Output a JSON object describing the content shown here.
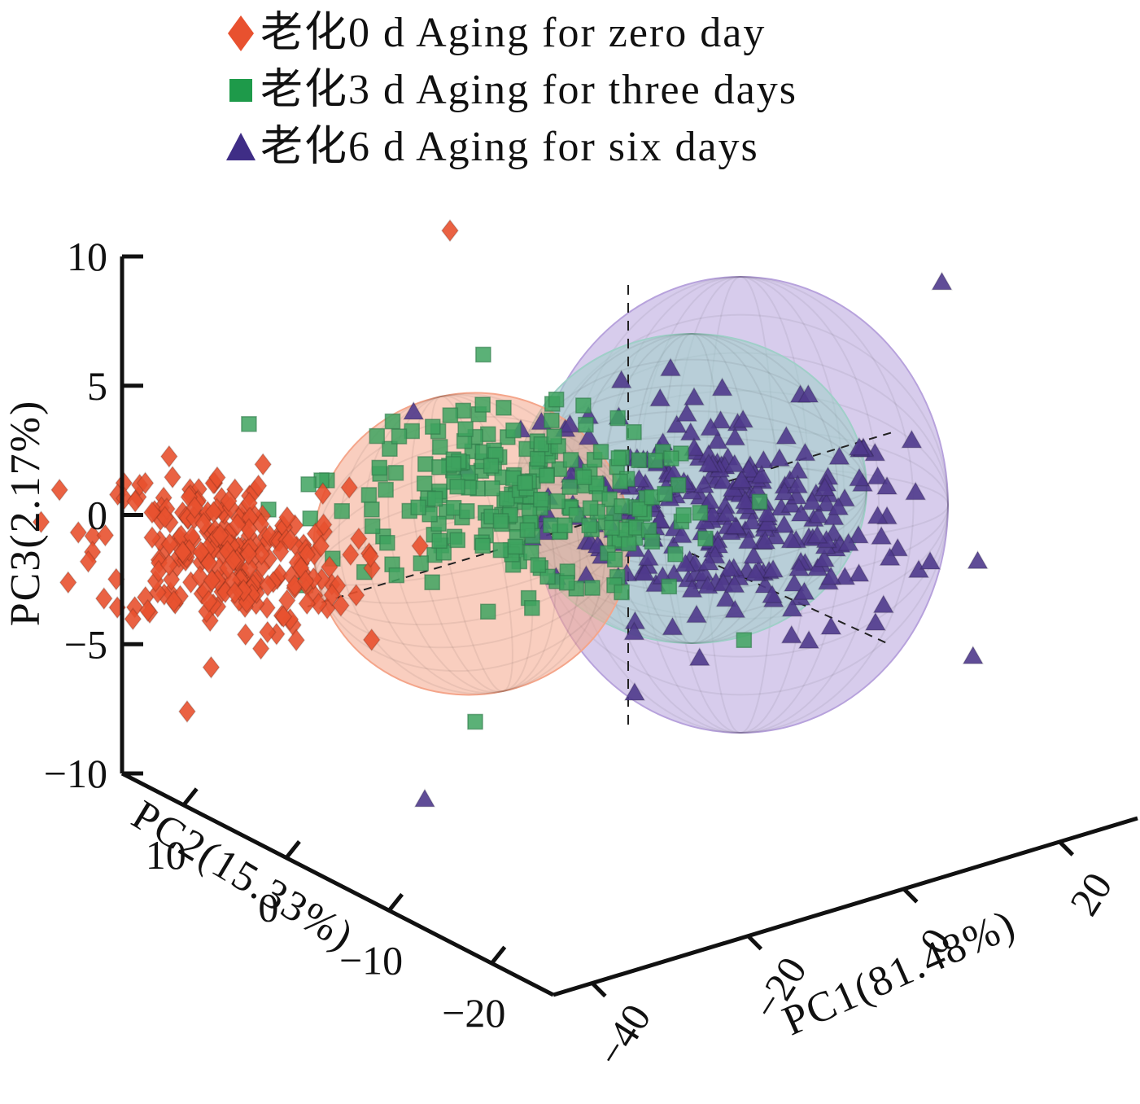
{
  "chart_data": {
    "type": "scatter",
    "subtype": "3d-pca-scatter-with-confidence-ellipsoids",
    "title": "",
    "legend_position": "top",
    "axes": {
      "x": {
        "label": "PC1(81.48%)",
        "ticks": [
          -40,
          -20,
          0,
          20
        ],
        "range": [
          -45,
          30
        ]
      },
      "y": {
        "label": "PC2(15.33%)",
        "ticks": [
          10,
          0,
          -10,
          -20
        ],
        "range": [
          16,
          -26
        ]
      },
      "z": {
        "label": "PC3(2.17%)",
        "ticks": [
          10,
          5,
          0,
          -5,
          -10
        ],
        "range": [
          -10,
          10
        ]
      }
    },
    "series": [
      {
        "name": "老化0 d Aging for zero day",
        "marker": "diamond",
        "color": "#e8512f",
        "ellipsoid_color": "#f4a58a",
        "center": {
          "pc1": -32,
          "pc3": -1.5
        },
        "spread": {
          "pc1": 9,
          "pc3": 2.6
        },
        "n_points": 260
      },
      {
        "name": "老化3 d Aging for three days",
        "marker": "square",
        "color": "#3ea35f",
        "ellipsoid_color": "#9fcfc8",
        "center": {
          "pc1": -8,
          "pc3": 0.5
        },
        "spread": {
          "pc1": 14,
          "pc3": 2.8
        },
        "n_points": 240
      },
      {
        "name": "老化6 d Aging for six days",
        "marker": "triangle",
        "color": "#4f3a8c",
        "ellipsoid_color": "#b7a2dc",
        "center": {
          "pc1": 8,
          "pc3": 0
        },
        "spread": {
          "pc1": 13,
          "pc3": 3.6
        },
        "n_points": 280
      }
    ],
    "outliers": [
      {
        "series": 0,
        "pc1": -14,
        "pc3": 11
      },
      {
        "series": 2,
        "pc1": 25,
        "pc3": 9
      },
      {
        "series": 2,
        "pc1": -16,
        "pc3": -11
      },
      {
        "series": 1,
        "pc1": -12,
        "pc3": -8
      }
    ]
  }
}
